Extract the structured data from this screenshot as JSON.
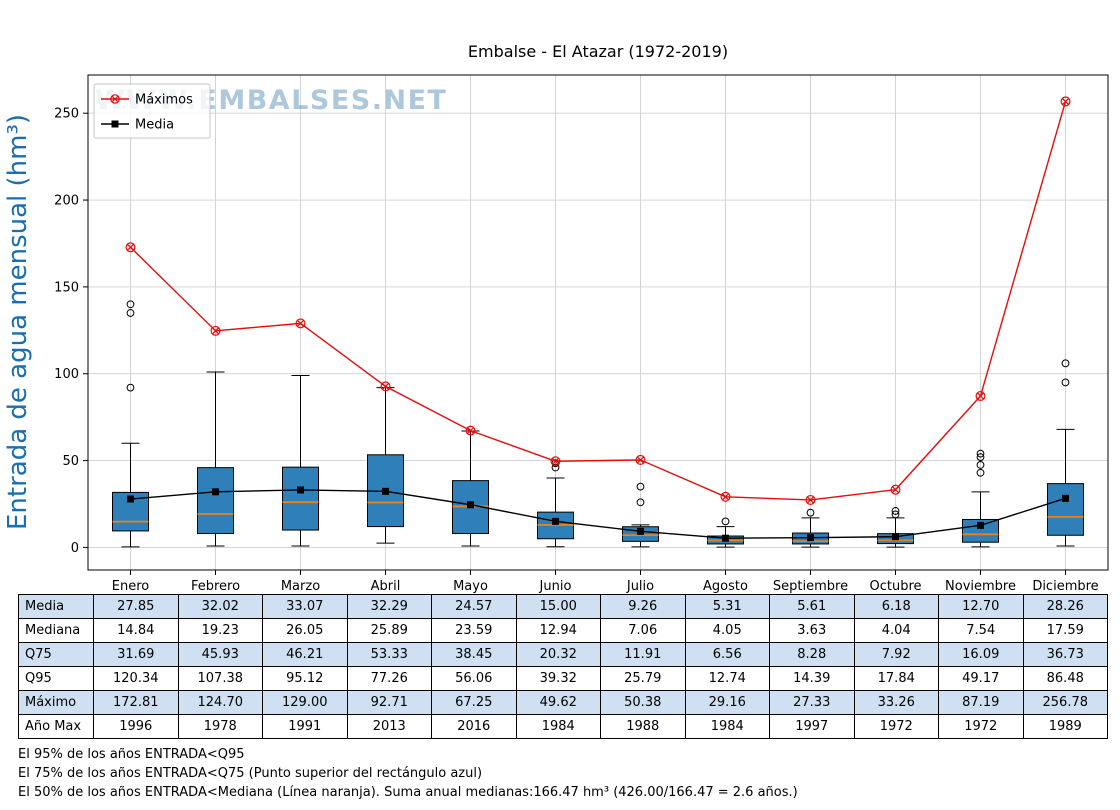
{
  "title": "Embalse - El Atazar (1972-2019)",
  "watermark": "WWW.EMBALSES.NET",
  "ylabel": "Entrada de agua mensual (hm³)",
  "legend": {
    "maximos": "Máximos",
    "media": "Media"
  },
  "colors": {
    "box_fill": "#2f7fb9",
    "box_edge": "#000000",
    "median": "#e8821d",
    "max_line": "#e60c0c",
    "media_line": "#000000",
    "grid": "#cfcfcf",
    "table_row_alt": "#cfe0f3"
  },
  "chart_data": {
    "type": "boxplot",
    "categories": [
      "Enero",
      "Febrero",
      "Marzo",
      "Abril",
      "Mayo",
      "Junio",
      "Julio",
      "Agosto",
      "Septiembre",
      "Octubre",
      "Noviembre",
      "Diciembre"
    ],
    "y_ticks": [
      0,
      50,
      100,
      150,
      200,
      250
    ],
    "ylim": [
      -13,
      272
    ],
    "grid": true,
    "legend_position": "upper-left",
    "series": [
      {
        "name": "Máximos",
        "marker": "circle-x",
        "color": "#e60c0c",
        "values": [
          172.81,
          124.7,
          129.0,
          92.71,
          67.25,
          49.62,
          50.38,
          29.16,
          27.33,
          33.26,
          87.19,
          256.78
        ]
      },
      {
        "name": "Media",
        "marker": "square",
        "color": "#000000",
        "values": [
          27.85,
          32.02,
          33.07,
          32.29,
          24.57,
          15.0,
          9.26,
          5.31,
          5.61,
          6.18,
          12.7,
          28.26
        ]
      }
    ],
    "boxes": {
      "median": [
        14.84,
        19.23,
        26.05,
        25.89,
        23.59,
        12.94,
        7.06,
        4.05,
        3.63,
        4.04,
        7.54,
        17.59
      ],
      "q75": [
        31.69,
        45.93,
        46.21,
        53.33,
        38.45,
        20.32,
        11.91,
        6.56,
        8.28,
        7.92,
        16.09,
        36.73
      ],
      "q25": [
        9.5,
        8,
        10,
        12,
        8,
        5,
        3.5,
        2,
        2,
        2.2,
        3,
        7
      ],
      "whisker_low": [
        0.3,
        0.8,
        0.8,
        2.5,
        0.8,
        0.4,
        0.3,
        0.2,
        0.2,
        0.2,
        0.3,
        0.8
      ],
      "whisker_high": [
        60,
        101,
        99,
        92,
        67,
        40,
        13,
        12,
        17,
        17,
        32,
        68
      ],
      "outliers": [
        [
          92,
          135,
          140
        ],
        [],
        [],
        [],
        [],
        [
          46,
          48.5
        ],
        [
          26,
          35
        ],
        [
          15
        ],
        [
          20
        ],
        [
          19,
          21
        ],
        [
          43,
          47.5,
          52,
          54
        ],
        [
          95,
          106
        ]
      ]
    }
  },
  "table": {
    "row_labels": [
      "Media",
      "Mediana",
      "Q75",
      "Q95",
      "Máximo",
      "Año Max"
    ],
    "rows": [
      [
        "27.85",
        "32.02",
        "33.07",
        "32.29",
        "24.57",
        "15.00",
        "9.26",
        "5.31",
        "5.61",
        "6.18",
        "12.70",
        "28.26"
      ],
      [
        "14.84",
        "19.23",
        "26.05",
        "25.89",
        "23.59",
        "12.94",
        "7.06",
        "4.05",
        "3.63",
        "4.04",
        "7.54",
        "17.59"
      ],
      [
        "31.69",
        "45.93",
        "46.21",
        "53.33",
        "38.45",
        "20.32",
        "11.91",
        "6.56",
        "8.28",
        "7.92",
        "16.09",
        "36.73"
      ],
      [
        "120.34",
        "107.38",
        "95.12",
        "77.26",
        "56.06",
        "39.32",
        "25.79",
        "12.74",
        "14.39",
        "17.84",
        "49.17",
        "86.48"
      ],
      [
        "172.81",
        "124.70",
        "129.00",
        "92.71",
        "67.25",
        "49.62",
        "50.38",
        "29.16",
        "27.33",
        "33.26",
        "87.19",
        "256.78"
      ],
      [
        "1996",
        "1978",
        "1991",
        "2013",
        "2016",
        "1984",
        "1988",
        "1984",
        "1997",
        "1972",
        "1972",
        "1989"
      ]
    ]
  },
  "footer": {
    "line1": "El 95% de los años ENTRADA<Q95",
    "line2": "El 75% de los años ENTRADA<Q75 (Punto superior del rectángulo azul)",
    "line3": "El 50% de los años ENTRADA<Mediana (Línea naranja). Suma anual medianas:166.47 hm³ (426.00/166.47 = 2.6 años.)"
  }
}
